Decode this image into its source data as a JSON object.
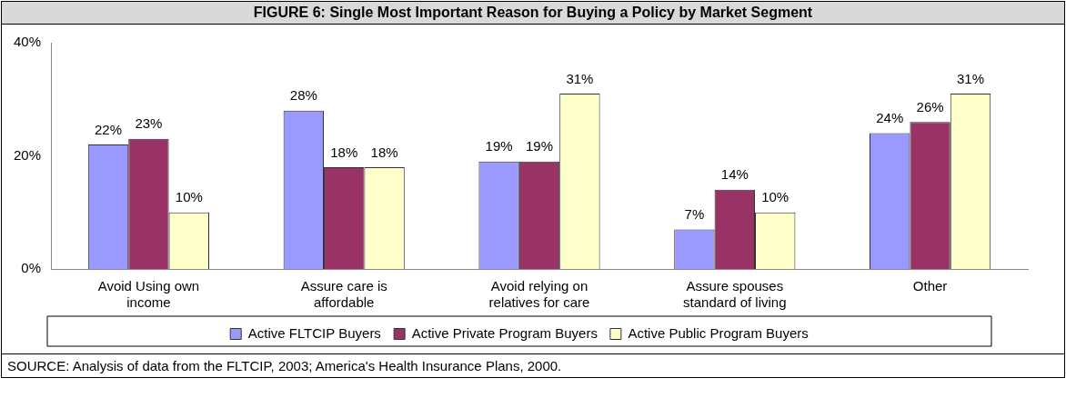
{
  "chart_data": {
    "type": "bar",
    "title": "FIGURE 6: Single Most Important Reason for Buying a Policy by Market Segment",
    "categories": [
      "Avoid Using own income",
      "Assure care is affordable",
      "Avoid relying on relatives for care",
      "Assure spouses standard of living",
      "Other"
    ],
    "series": [
      {
        "name": "Active FLTCIP Buyers",
        "color": "#9999ff",
        "values": [
          22,
          28,
          19,
          7,
          24
        ],
        "value_labels": [
          "22%",
          "28%",
          "19%",
          "7%",
          "24%"
        ]
      },
      {
        "name": "Active Private Program Buyers",
        "color": "#993366",
        "values": [
          23,
          18,
          19,
          14,
          26
        ],
        "value_labels": [
          "23%",
          "18%",
          "19%",
          "14%",
          "26%"
        ]
      },
      {
        "name": "Active Public Program Buyers",
        "color": "#ffffcc",
        "values": [
          10,
          18,
          31,
          10,
          31
        ],
        "value_labels": [
          "10%",
          "18%",
          "31%",
          "10%",
          "31%"
        ]
      }
    ],
    "ylim": [
      0,
      40
    ],
    "yticks": [
      {
        "value": 0,
        "label": "0%"
      },
      {
        "value": 20,
        "label": "20%"
      },
      {
        "value": 40,
        "label": "40%"
      }
    ],
    "grid": false,
    "legend": "bottom",
    "annotations": [
      "SOURCE: Analysis of data from the FLTCIP, 2003; America's Health Insurance Plans, 2000."
    ]
  }
}
